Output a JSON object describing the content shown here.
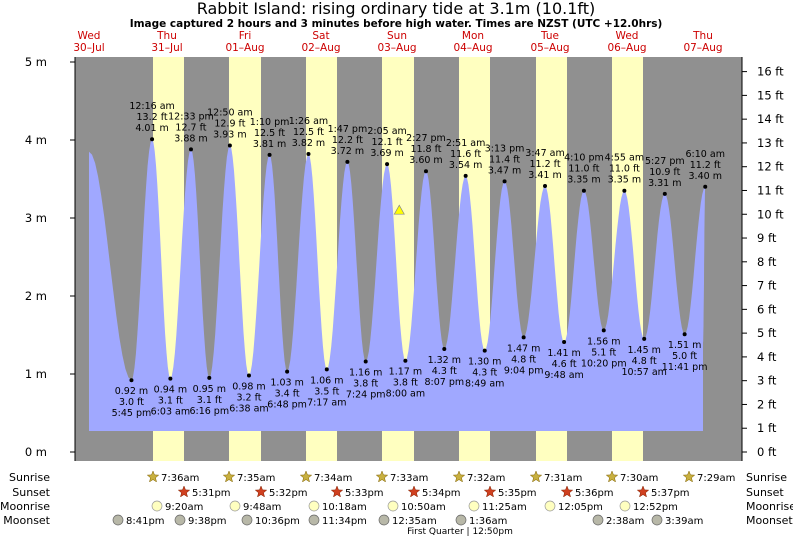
{
  "title": "Rabbit Island: rising  ordinary tide at 3.1m (10.1ft)",
  "subtitle": "Image captured 2 hours and 3 minutes before high water. Times are NZST (UTC +12.0hrs)",
  "days": [
    {
      "weekday": "Wed",
      "date": "30–Jul"
    },
    {
      "weekday": "Thu",
      "date": "31–Jul"
    },
    {
      "weekday": "Fri",
      "date": "01–Aug"
    },
    {
      "weekday": "Sat",
      "date": "02–Aug"
    },
    {
      "weekday": "Sun",
      "date": "03–Aug"
    },
    {
      "weekday": "Mon",
      "date": "04–Aug"
    },
    {
      "weekday": "Tue",
      "date": "05–Aug"
    },
    {
      "weekday": "Wed",
      "date": "06–Aug"
    },
    {
      "weekday": "Thu",
      "date": "07–Aug"
    }
  ],
  "chart_data": {
    "type": "area",
    "title": "Rabbit Island: rising  ordinary tide at 3.1m (10.1ft)",
    "ylim_m": [
      0,
      5
    ],
    "ylim_ft": [
      0,
      16
    ],
    "y_ticks_m": [
      "0 m",
      "1 m",
      "2 m",
      "3 m",
      "4 m",
      "5 m"
    ],
    "y_ticks_ft": [
      "0 ft",
      "1 ft",
      "2 ft",
      "3 ft",
      "4 ft",
      "5 ft",
      "6 ft",
      "7 ft",
      "8 ft",
      "9 ft",
      "10 ft",
      "11 ft",
      "12 ft",
      "13 ft",
      "14 ft",
      "15 ft",
      "16 ft"
    ],
    "current": {
      "level_m": 3.1,
      "level_ft": 10.1
    },
    "colors": {
      "water": "#a0a8ff",
      "day_band": "#ffffc0",
      "night_band": "#909090",
      "marker": "#ffff00"
    },
    "tides": [
      {
        "type": "high",
        "time": "12:16 am",
        "m": "4.01 m",
        "ft": "13.2 ft",
        "x": 1.01,
        "y": 4.01
      },
      {
        "type": "low",
        "time": "5:45 pm",
        "m": "0.92 m",
        "ft": "3.0 ft",
        "x": 0.74,
        "y": 0.92
      },
      {
        "type": "high",
        "time": "12:33 pm",
        "m": "3.88 m",
        "ft": "12.7 ft",
        "x": 1.52,
        "y": 3.88
      },
      {
        "type": "low",
        "time": "6:03 am",
        "m": "0.94 m",
        "ft": "3.1 ft",
        "x": 1.25,
        "y": 0.94
      },
      {
        "type": "high",
        "time": "12:50 am",
        "m": "3.93 m",
        "ft": "12.9 ft",
        "x": 2.03,
        "y": 3.93
      },
      {
        "type": "low",
        "time": "6:16 pm",
        "m": "0.95 m",
        "ft": "3.1 ft",
        "x": 1.76,
        "y": 0.95
      },
      {
        "type": "high",
        "time": "1:10 pm",
        "m": "3.81 m",
        "ft": "12.5 ft",
        "x": 2.55,
        "y": 3.81
      },
      {
        "type": "low",
        "time": "6:38 am",
        "m": "0.98 m",
        "ft": "3.2 ft",
        "x": 2.28,
        "y": 0.98
      },
      {
        "type": "high",
        "time": "1:26 am",
        "m": "3.82 m",
        "ft": "12.5 ft",
        "x": 3.06,
        "y": 3.82
      },
      {
        "type": "low",
        "time": "6:48 pm",
        "m": "1.03 m",
        "ft": "3.4 ft",
        "x": 2.78,
        "y": 1.03
      },
      {
        "type": "high",
        "time": "1:47 pm",
        "m": "3.72 m",
        "ft": "12.2 ft",
        "x": 3.57,
        "y": 3.72
      },
      {
        "type": "low",
        "time": "7:17 am",
        "m": "1.06 m",
        "ft": "3.5 ft",
        "x": 3.3,
        "y": 1.06
      },
      {
        "type": "high",
        "time": "2:05 am",
        "m": "3.69 m",
        "ft": "12.1 ft",
        "x": 4.09,
        "y": 3.69
      },
      {
        "type": "low",
        "time": "7:24 pm",
        "m": "1.16 m",
        "ft": "3.8 ft",
        "x": 3.81,
        "y": 1.16
      },
      {
        "type": "high",
        "time": "2:27 pm",
        "m": "3.60 m",
        "ft": "11.8 ft",
        "x": 4.6,
        "y": 3.6
      },
      {
        "type": "low",
        "time": "8:00 am",
        "m": "1.17 m",
        "ft": "3.8 ft",
        "x": 4.33,
        "y": 1.17
      },
      {
        "type": "high",
        "time": "2:51 am",
        "m": "3.54 m",
        "ft": "11.6 ft",
        "x": 5.12,
        "y": 3.54
      },
      {
        "type": "low",
        "time": "8:07 pm",
        "m": "1.32 m",
        "ft": "4.3 ft",
        "x": 4.84,
        "y": 1.32
      },
      {
        "type": "high",
        "time": "3:13 pm",
        "m": "3.47 m",
        "ft": "11.4 ft",
        "x": 5.63,
        "y": 3.47
      },
      {
        "type": "low",
        "time": "8:49 am",
        "m": "1.30 m",
        "ft": "4.3 ft",
        "x": 5.37,
        "y": 1.3
      },
      {
        "type": "high",
        "time": "3:47 am",
        "m": "3.41 m",
        "ft": "11.2 ft",
        "x": 6.16,
        "y": 3.41
      },
      {
        "type": "low",
        "time": "9:04 pm",
        "m": "1.47 m",
        "ft": "4.8 ft",
        "x": 5.88,
        "y": 1.47
      },
      {
        "type": "high",
        "time": "4:10 pm",
        "m": "3.35 m",
        "ft": "11.0 ft",
        "x": 6.67,
        "y": 3.35
      },
      {
        "type": "low",
        "time": "9:48 am",
        "m": "1.41 m",
        "ft": "4.6 ft",
        "x": 6.41,
        "y": 1.41
      },
      {
        "type": "high",
        "time": "4:55 am",
        "m": "3.35 m",
        "ft": "11.0 ft",
        "x": 7.2,
        "y": 3.35
      },
      {
        "type": "low",
        "time": "10:20 pm",
        "m": "1.56 m",
        "ft": "5.1 ft",
        "x": 6.93,
        "y": 1.56
      },
      {
        "type": "high",
        "time": "5:27 pm",
        "m": "3.31 m",
        "ft": "10.9 ft",
        "x": 7.73,
        "y": 3.31
      },
      {
        "type": "low",
        "time": "10:57 am",
        "m": "1.45 m",
        "ft": "4.8 ft",
        "x": 7.46,
        "y": 1.45
      },
      {
        "type": "high",
        "time": "6:10 am",
        "m": "3.40 m",
        "ft": "11.2 ft",
        "x": 8.26,
        "y": 3.4
      },
      {
        "type": "low",
        "time": "11:41 pm",
        "m": "1.51 m",
        "ft": "5.0 ft",
        "x": 7.99,
        "y": 1.51
      }
    ]
  },
  "bands": [
    [
      0.48,
      0.29
    ],
    [
      1.3,
      0.73
    ],
    [
      1.3,
      1.73
    ],
    [
      2.3,
      2.73
    ],
    [
      3.3,
      3.73
    ],
    [
      4.3,
      4.73
    ],
    [
      5.3,
      5.73
    ],
    [
      6.3,
      6.73
    ],
    [
      7.3,
      7.73
    ]
  ],
  "astro_rows": {
    "sunrise": {
      "label": "Sunrise",
      "times": [
        "7:36am",
        "7:35am",
        "7:34am",
        "7:33am",
        "7:32am",
        "7:31am",
        "7:30am",
        "7:29am"
      ]
    },
    "sunset": {
      "label": "Sunset",
      "times": [
        "5:31pm",
        "5:32pm",
        "5:33pm",
        "5:34pm",
        "5:35pm",
        "5:36pm",
        "5:37pm"
      ]
    },
    "moonrise": {
      "label": "Moonrise",
      "times": [
        "9:20am",
        "9:48am",
        "10:18am",
        "10:50am",
        "11:25am",
        "12:05pm",
        "12:52pm"
      ]
    },
    "moonset": {
      "label": "Moonset",
      "times": [
        "8:41pm",
        "9:38pm",
        "10:36pm",
        "11:34pm",
        "12:35am",
        "1:36am",
        "2:38am",
        "3:39am"
      ]
    },
    "moon_phase": "First Quarter | 12:50pm"
  }
}
